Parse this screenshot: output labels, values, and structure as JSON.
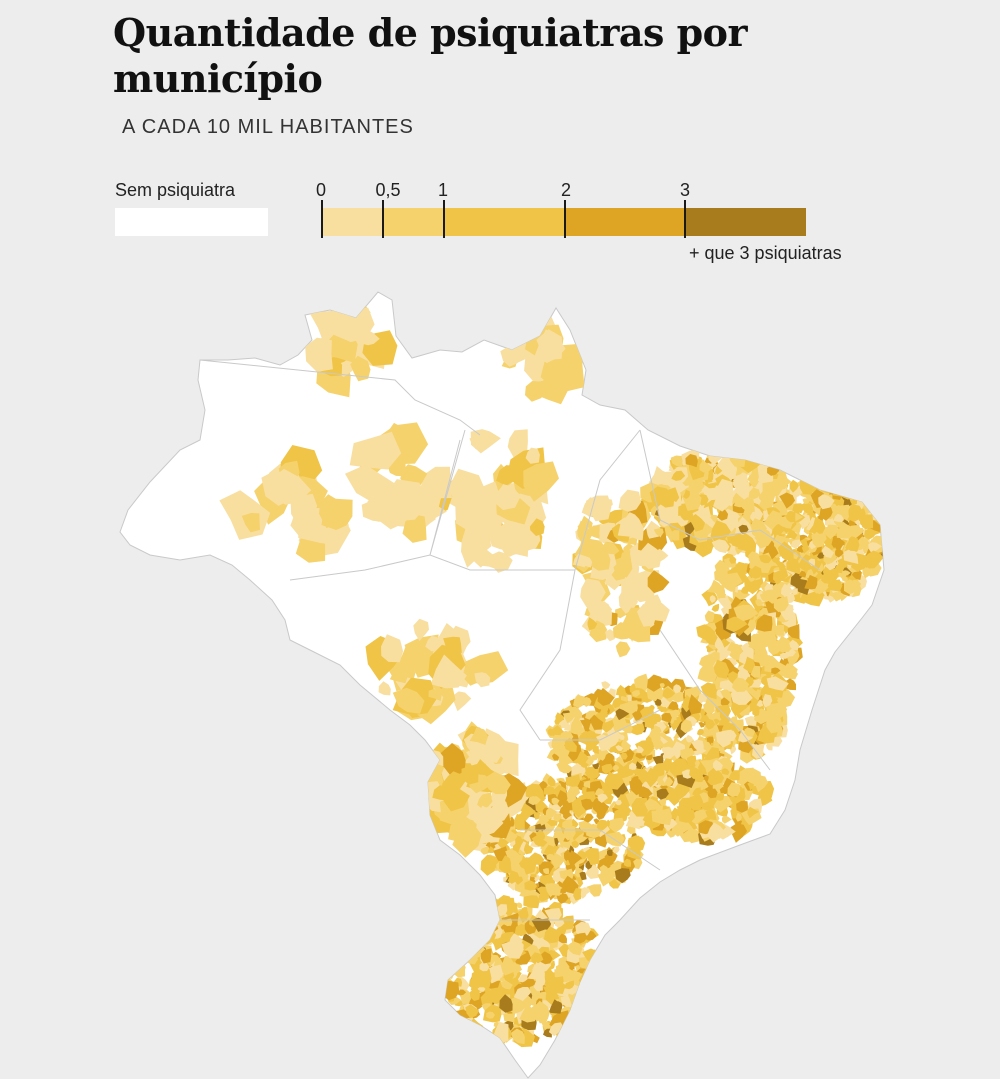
{
  "title": "Quantidade de psiquiatras por município",
  "subtitle": "A CADA 10 MIL HABITANTES",
  "legend": {
    "no_psychiatrist_label": "Sem psiquiatra",
    "no_psychiatrist_color": "#ffffff",
    "ticks": [
      "0",
      "0,5",
      "1",
      "2",
      "3"
    ],
    "tick_values": [
      0,
      0.5,
      1,
      2,
      3
    ],
    "bins": [
      {
        "from": 0,
        "to": 0.5,
        "color": "#f8df9f"
      },
      {
        "from": 0.5,
        "to": 1,
        "color": "#f5d26c"
      },
      {
        "from": 1,
        "to": 2,
        "color": "#f0c446"
      },
      {
        "from": 2,
        "to": 3,
        "color": "#dea424"
      },
      {
        "from": 3,
        "to": null,
        "color": "#a87b1c"
      }
    ],
    "more_label": "+ que 3 psiquiatras"
  },
  "map": {
    "subject": "Brazil municipalities",
    "land_color": "#ffffff",
    "border_color": "#c9c9c9"
  }
}
